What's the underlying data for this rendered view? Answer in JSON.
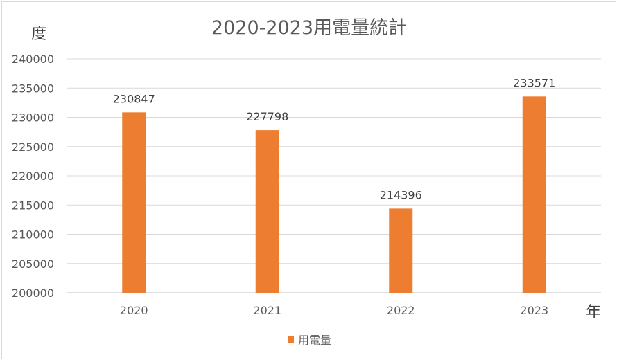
{
  "chart_data": {
    "type": "bar",
    "title": "2020-2023用電量統計",
    "ylabel": "度",
    "xlabel": "年",
    "categories": [
      "2020",
      "2021",
      "2022",
      "2023"
    ],
    "series": [
      {
        "name": "用電量",
        "values": [
          230847,
          227798,
          214396,
          233571
        ],
        "color": "#ed7d31"
      }
    ],
    "ylim": [
      200000,
      240000
    ],
    "yticks": [
      "200000",
      "205000",
      "210000",
      "215000",
      "220000",
      "225000",
      "230000",
      "235000",
      "240000"
    ],
    "grid": true,
    "legend": "bottom",
    "data_labels": true
  }
}
